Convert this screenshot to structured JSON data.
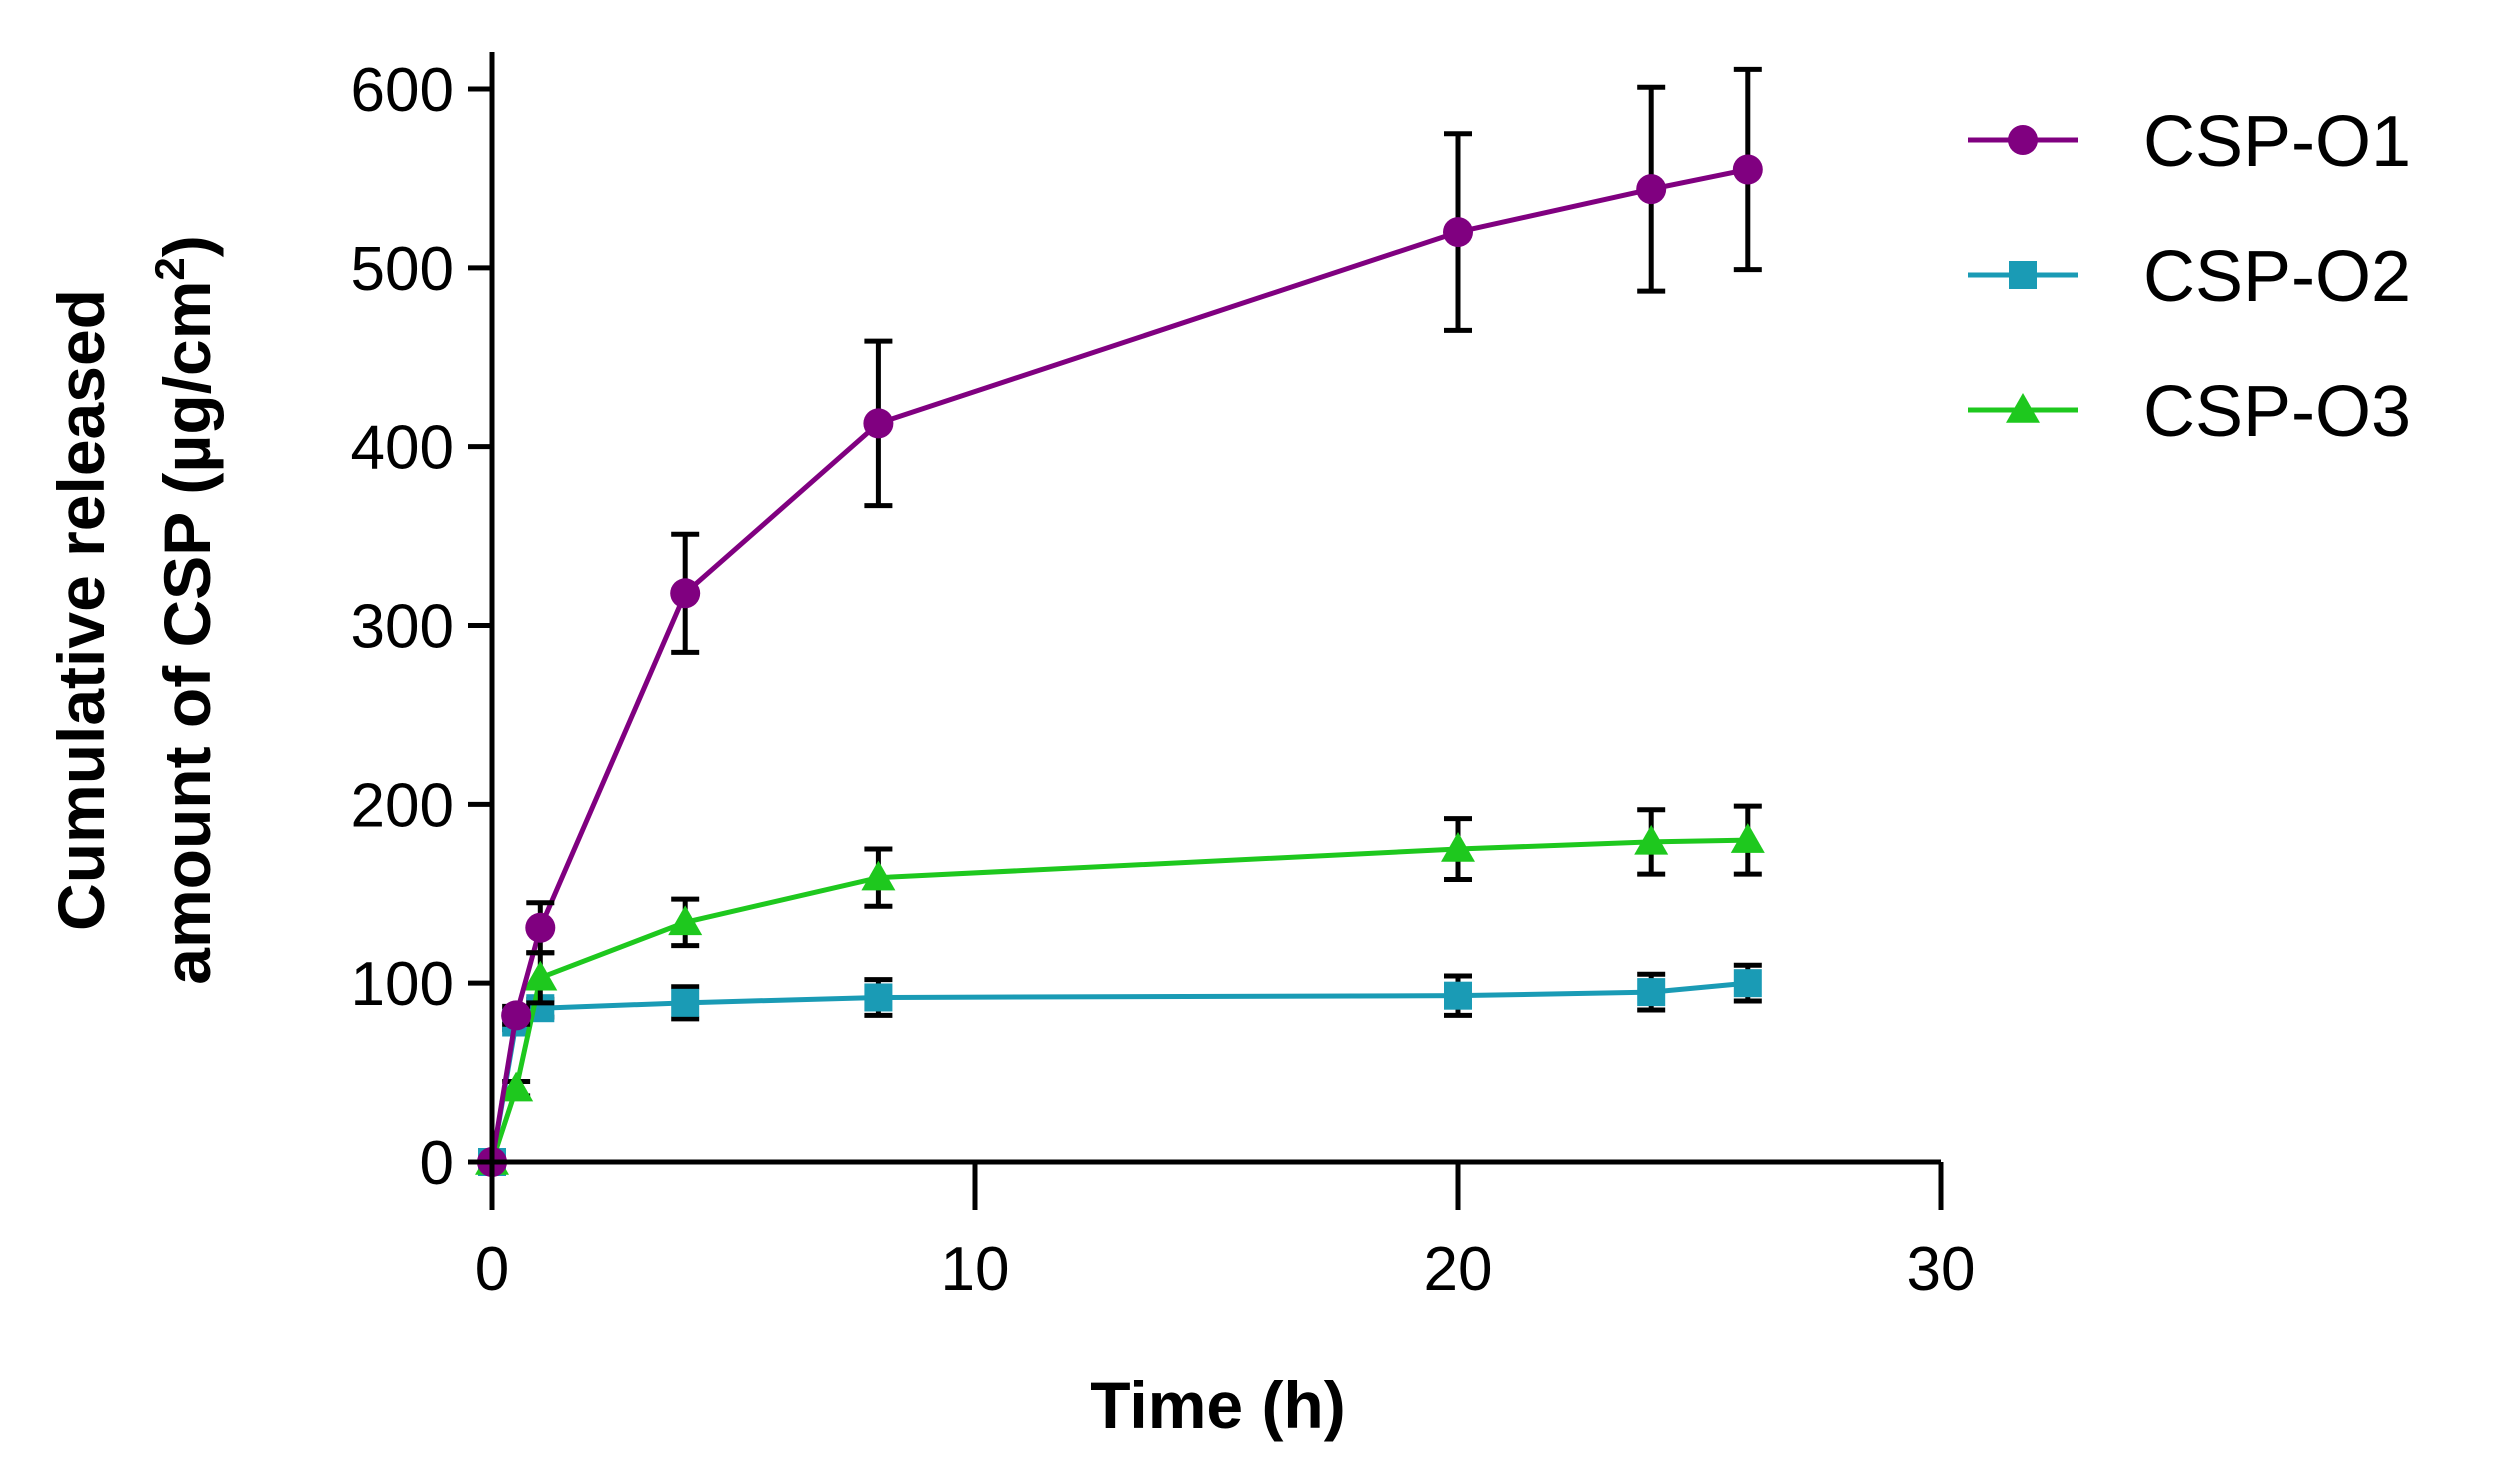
{
  "chart_data": {
    "type": "line",
    "title": "",
    "xlabel": "Time (h)",
    "ylabel_line1": "Cumulative released",
    "ylabel_line2_prefix": "amount of CSP (µg/cm",
    "ylabel_line2_sup": "2",
    "ylabel_line2_suffix": ")",
    "xlim": [
      0,
      30
    ],
    "ylim": [
      0,
      600
    ],
    "xticks": [
      0,
      10,
      20,
      30
    ],
    "yticks": [
      0,
      100,
      200,
      300,
      400,
      500,
      600
    ],
    "grid": false,
    "legend_position": "top-right",
    "x": [
      0,
      0.5,
      1,
      4,
      8,
      20,
      24,
      26
    ],
    "series": [
      {
        "name": "CSP-O1",
        "color": "#800080",
        "marker": "circle",
        "values": [
          0,
          82,
          131,
          318,
          413,
          520,
          544,
          555
        ],
        "errors": [
          0,
          5,
          14,
          33,
          46,
          55,
          57,
          56
        ]
      },
      {
        "name": "CSP-O2",
        "color": "#1a9bb5",
        "marker": "square",
        "values": [
          0,
          78,
          86,
          89,
          92,
          93,
          95,
          100
        ],
        "errors": [
          0,
          4,
          5,
          9,
          10,
          11,
          10,
          10
        ]
      },
      {
        "name": "CSP-O3",
        "color": "#1ec81e",
        "marker": "triangle",
        "values": [
          0,
          41,
          103,
          134,
          159,
          175,
          179,
          180
        ],
        "errors": [
          0,
          4,
          14,
          13,
          16,
          17,
          18,
          19
        ]
      }
    ]
  }
}
